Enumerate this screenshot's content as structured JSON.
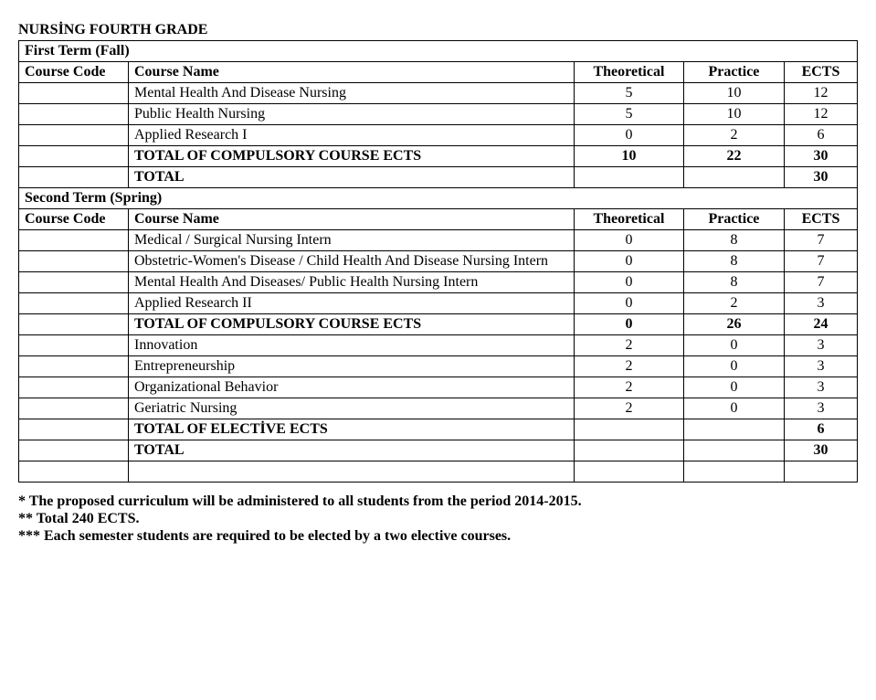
{
  "title": "NURSİNG FOURTH GRADE",
  "firstTerm": {
    "label": "First Term (Fall)",
    "header": {
      "code": "Course Code",
      "name": "Course Name",
      "theoretical": "Theoretical",
      "practice": "Practice",
      "ects": "ECTS"
    },
    "rows": [
      {
        "name": "Mental Health And Disease Nursing",
        "th": "5",
        "pr": "10",
        "ects": "12"
      },
      {
        "name": "Public Health Nursing",
        "th": "5",
        "pr": "10",
        "ects": "12"
      },
      {
        "name": "Applied Research I",
        "th": "0",
        "pr": "2",
        "ects": "6"
      }
    ],
    "totalCompulsory": {
      "label": "TOTAL OF COMPULSORY COURSE ECTS",
      "th": "10",
      "pr": "22",
      "ects": "30"
    },
    "total": {
      "label": "TOTAL",
      "ects": "30"
    }
  },
  "secondTerm": {
    "label": "Second Term (Spring)",
    "header": {
      "code": "Course Code",
      "name": "Course Name",
      "theoretical": "Theoretical",
      "practice": "Practice",
      "ects": "ECTS"
    },
    "rows": [
      {
        "name": "Medical  / Surgical Nursing Intern",
        "th": "0",
        "pr": "8",
        "ects": "7"
      },
      {
        "name": "Obstetric-Women's Disease / Child Health And Disease Nursing Intern",
        "th": "0",
        "pr": "8",
        "ects": "7"
      },
      {
        "name": "Mental Health And Diseases/ Public Health Nursing Intern",
        "th": "0",
        "pr": "8",
        "ects": "7"
      },
      {
        "name": "Applied Research II",
        "th": "0",
        "pr": "2",
        "ects": "3"
      }
    ],
    "totalCompulsory": {
      "label": "TOTAL OF COMPULSORY COURSE ECTS",
      "th": "0",
      "pr": "26",
      "ects": "24"
    },
    "electiveRows": [
      {
        "name": "Innovation",
        "th": "2",
        "pr": "0",
        "ects": "3"
      },
      {
        "name": "Entrepreneurship",
        "th": "2",
        "pr": "0",
        "ects": "3"
      },
      {
        "name": "Organizational Behavior",
        "th": "2",
        "pr": "0",
        "ects": "3"
      },
      {
        "name": "Geriatric Nursing",
        "th": "2",
        "pr": "0",
        "ects": "3"
      }
    ],
    "totalElective": {
      "label": "TOTAL OF ELECTİVE ECTS",
      "ects": "6"
    },
    "total": {
      "label": "TOTAL",
      "ects": "30"
    }
  },
  "footnotes": [
    "* The proposed curriculum will be administered to all students from the period 2014-2015.",
    "** Total 240 ECTS.",
    "*** Each semester students are required to be elected by a two elective courses."
  ]
}
